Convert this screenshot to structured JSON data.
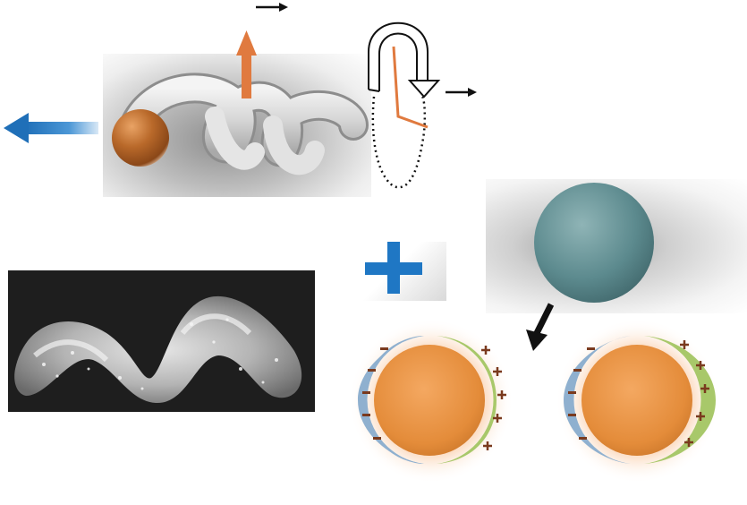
{
  "figure": {
    "micromotor": {
      "body_color": "#c9c9c9",
      "cargo_particle_color": "#b5651d",
      "propulsion_arrow_color": "#2f80c8",
      "thrust_arrow_color": "#e07a3f"
    },
    "helix_schematic": {
      "outline_color": "#111111",
      "inner_arrow_color": "#e07a3f"
    },
    "sem_image": {
      "background": "#1e1e1e"
    },
    "assembly": {
      "plus_sign_color": "#1f77c4",
      "capture_sphere_color": "#5b8a8e",
      "janus_particle_color": "#e8913a",
      "negative_cap_color": "#8fb0cf",
      "positive_cap_color": "#a8c86a",
      "charge_mark_color": "#7a3a1e",
      "glow_color": "#f6b88a"
    },
    "icons": [
      "plus-icon",
      "arrow-icon"
    ]
  }
}
